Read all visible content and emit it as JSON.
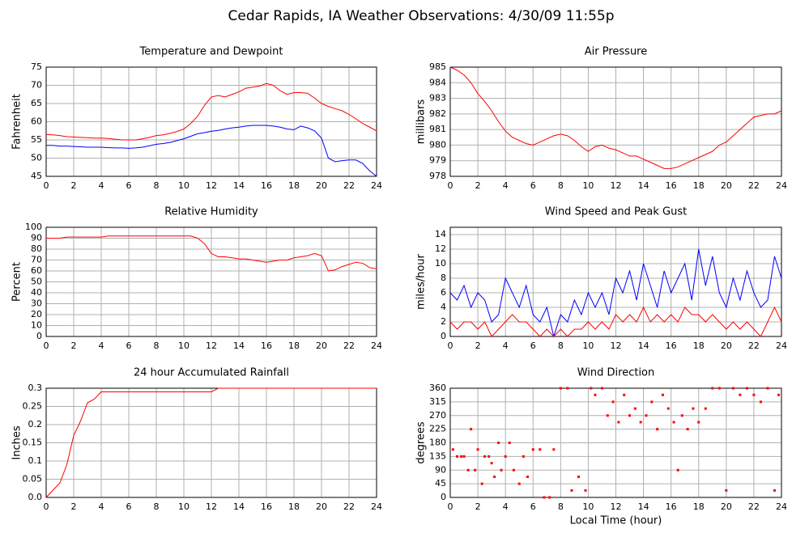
{
  "title": "Cedar Rapids, IA Weather Observations: 4/30/09 11:55p",
  "chart_data": [
    {
      "type": "line",
      "title": "Temperature and Dewpoint",
      "ylabel": "Fahrenheit",
      "x": [
        0,
        0.5,
        1,
        1.5,
        2,
        2.5,
        3,
        3.5,
        4,
        4.5,
        5,
        5.5,
        6,
        6.5,
        7,
        7.5,
        8,
        8.5,
        9,
        9.5,
        10,
        10.5,
        11,
        11.5,
        12,
        12.5,
        13,
        13.5,
        14,
        14.5,
        15,
        15.5,
        16,
        16.5,
        17,
        17.5,
        18,
        18.5,
        19,
        19.5,
        20,
        20.5,
        21,
        21.5,
        22,
        22.5,
        23,
        23.5,
        24
      ],
      "series": [
        {
          "color": "#ff0000",
          "values": [
            56.5,
            56.4,
            56.2,
            55.9,
            55.8,
            55.7,
            55.6,
            55.5,
            55.5,
            55.4,
            55.2,
            55.0,
            55.0,
            55.0,
            55.3,
            55.7,
            56.2,
            56.4,
            56.8,
            57.3,
            58.0,
            59.5,
            61.5,
            64.5,
            66.8,
            67.2,
            66.8,
            67.5,
            68.2,
            69.2,
            69.5,
            69.8,
            70.5,
            70.0,
            68.5,
            67.5,
            68.0,
            68.0,
            67.8,
            66.5,
            65.0,
            64.2,
            63.6,
            63.0,
            62.0,
            60.8,
            59.5,
            58.5,
            57.5
          ]
        },
        {
          "color": "#0000ff",
          "values": [
            53.5,
            53.5,
            53.3,
            53.3,
            53.2,
            53.1,
            53.0,
            53.0,
            53.0,
            52.9,
            52.8,
            52.8,
            52.7,
            52.8,
            53.0,
            53.4,
            53.8,
            54.0,
            54.3,
            54.8,
            55.3,
            56.0,
            56.7,
            57.0,
            57.4,
            57.6,
            58.0,
            58.3,
            58.5,
            58.8,
            59.0,
            59.0,
            59.0,
            58.8,
            58.5,
            58.0,
            57.8,
            58.8,
            58.3,
            57.5,
            55.5,
            50.0,
            49.0,
            49.3,
            49.5,
            49.5,
            48.5,
            46.5,
            45.0
          ]
        }
      ],
      "xlim": [
        0,
        24
      ],
      "xticks": [
        0,
        2,
        4,
        6,
        8,
        10,
        12,
        14,
        16,
        18,
        20,
        22,
        24
      ],
      "ylim": [
        45,
        75
      ],
      "yticks": [
        45,
        50,
        55,
        60,
        65,
        70,
        75
      ],
      "grid": true
    },
    {
      "type": "line",
      "title": "Air Pressure",
      "ylabel": "millibars",
      "x": [
        0,
        0.5,
        1,
        1.5,
        2,
        2.5,
        3,
        3.5,
        4,
        4.5,
        5,
        5.5,
        6,
        6.5,
        7,
        7.5,
        8,
        8.5,
        9,
        9.5,
        10,
        10.5,
        11,
        11.5,
        12,
        12.5,
        13,
        13.5,
        14,
        14.5,
        15,
        15.5,
        16,
        16.5,
        17,
        17.5,
        18,
        18.5,
        19,
        19.5,
        20,
        20.5,
        21,
        21.5,
        22,
        22.5,
        23,
        23.5,
        24
      ],
      "series": [
        {
          "color": "#ff0000",
          "values": [
            985,
            984.8,
            984.5,
            984.0,
            983.3,
            982.8,
            982.2,
            981.5,
            980.9,
            980.5,
            980.3,
            980.1,
            980.0,
            980.2,
            980.4,
            980.6,
            980.7,
            980.6,
            980.3,
            979.9,
            979.6,
            979.9,
            980.0,
            979.8,
            979.7,
            979.5,
            979.3,
            979.3,
            979.1,
            978.9,
            978.7,
            978.5,
            978.5,
            978.6,
            978.8,
            979.0,
            979.2,
            979.4,
            979.6,
            980.0,
            980.2,
            980.6,
            981.0,
            981.4,
            981.8,
            981.9,
            982.0,
            982.0,
            982.2
          ]
        }
      ],
      "xlim": [
        0,
        24
      ],
      "xticks": [
        0,
        2,
        4,
        6,
        8,
        10,
        12,
        14,
        16,
        18,
        20,
        22,
        24
      ],
      "ylim": [
        978,
        985
      ],
      "yticks": [
        978,
        979,
        980,
        981,
        982,
        983,
        984,
        985
      ],
      "grid": true
    },
    {
      "type": "line",
      "title": "Relative Humidity",
      "ylabel": "Percent",
      "x": [
        0,
        0.5,
        1,
        1.5,
        2,
        2.5,
        3,
        3.5,
        4,
        4.5,
        5,
        5.5,
        6,
        6.5,
        7,
        7.5,
        8,
        8.5,
        9,
        9.5,
        10,
        10.5,
        11,
        11.5,
        12,
        12.5,
        13,
        13.5,
        14,
        14.5,
        15,
        15.5,
        16,
        16.5,
        17,
        17.5,
        18,
        18.5,
        19,
        19.5,
        20,
        20.5,
        21,
        21.5,
        22,
        22.5,
        23,
        23.5,
        24
      ],
      "series": [
        {
          "color": "#ff0000",
          "values": [
            90,
            90,
            90,
            91,
            91,
            91,
            91,
            91,
            91,
            92,
            92,
            92,
            92,
            92,
            92,
            92,
            92,
            92,
            92,
            92,
            92,
            92,
            90,
            85,
            76,
            73,
            73,
            72,
            71,
            71,
            70,
            69,
            68,
            69,
            70,
            70,
            72,
            73,
            74,
            76,
            74,
            60,
            61,
            64,
            66,
            68,
            67,
            63,
            62
          ]
        }
      ],
      "xlim": [
        0,
        24
      ],
      "xticks": [
        0,
        2,
        4,
        6,
        8,
        10,
        12,
        14,
        16,
        18,
        20,
        22,
        24
      ],
      "ylim": [
        0,
        100
      ],
      "yticks": [
        0,
        10,
        20,
        30,
        40,
        50,
        60,
        70,
        80,
        90,
        100
      ],
      "grid": true
    },
    {
      "type": "line",
      "title": "Wind Speed and Peak Gust",
      "ylabel": "miles/hour",
      "x": [
        0,
        0.5,
        1,
        1.5,
        2,
        2.5,
        3,
        3.5,
        4,
        4.5,
        5,
        5.5,
        6,
        6.5,
        7,
        7.5,
        8,
        8.5,
        9,
        9.5,
        10,
        10.5,
        11,
        11.5,
        12,
        12.5,
        13,
        13.5,
        14,
        14.5,
        15,
        15.5,
        16,
        16.5,
        17,
        17.5,
        18,
        18.5,
        19,
        19.5,
        20,
        20.5,
        21,
        21.5,
        22,
        22.5,
        23,
        23.5,
        24
      ],
      "series": [
        {
          "color": "#0000ff",
          "values": [
            6,
            5,
            7,
            4,
            6,
            5,
            2,
            3,
            8,
            6,
            4,
            7,
            3,
            2,
            4,
            0,
            3,
            2,
            5,
            3,
            6,
            4,
            6,
            3,
            8,
            6,
            9,
            5,
            10,
            7,
            4,
            9,
            6,
            8,
            10,
            5,
            12,
            7,
            11,
            6,
            4,
            8,
            5,
            9,
            6,
            4,
            5,
            11,
            8
          ]
        },
        {
          "color": "#ff0000",
          "values": [
            2,
            1,
            2,
            2,
            1,
            2,
            0,
            1,
            2,
            3,
            2,
            2,
            1,
            0,
            1,
            0,
            1,
            0,
            1,
            1,
            2,
            1,
            2,
            1,
            3,
            2,
            3,
            2,
            4,
            2,
            3,
            2,
            3,
            2,
            4,
            3,
            3,
            2,
            3,
            2,
            1,
            2,
            1,
            2,
            1,
            0,
            2,
            4,
            2
          ]
        }
      ],
      "xlim": [
        0,
        24
      ],
      "xticks": [
        0,
        2,
        4,
        6,
        8,
        10,
        12,
        14,
        16,
        18,
        20,
        22,
        24
      ],
      "ylim": [
        0,
        15
      ],
      "yticks": [
        0,
        2,
        4,
        6,
        8,
        10,
        12,
        14
      ],
      "grid": true
    },
    {
      "type": "line",
      "title": "24 hour Accumulated Rainfall",
      "ylabel": "Inches",
      "x": [
        0,
        0.5,
        1,
        1.5,
        2,
        2.5,
        3,
        3.5,
        4,
        4.5,
        5,
        6,
        8,
        10,
        12,
        12.5,
        14,
        16,
        18,
        20,
        22,
        24
      ],
      "series": [
        {
          "color": "#ff0000",
          "values": [
            0,
            0.02,
            0.04,
            0.09,
            0.17,
            0.21,
            0.26,
            0.27,
            0.29,
            0.29,
            0.29,
            0.29,
            0.29,
            0.29,
            0.29,
            0.3,
            0.3,
            0.3,
            0.3,
            0.3,
            0.3,
            0.3
          ]
        }
      ],
      "xlim": [
        0,
        24
      ],
      "xticks": [
        0,
        2,
        4,
        6,
        8,
        10,
        12,
        14,
        16,
        18,
        20,
        22,
        24
      ],
      "ylim": [
        0,
        0.3
      ],
      "yticks": [
        {
          "value": 0,
          "label": "0.0"
        },
        0.05,
        0.1,
        0.15,
        0.2,
        0.25,
        0.3
      ],
      "grid": true
    },
    {
      "type": "scatter",
      "title": "Wind Direction",
      "ylabel": "degrees",
      "xlabel": "Local Time (hour)",
      "color": "#ff0000",
      "x": [
        0.2,
        0.5,
        0.8,
        1.0,
        1.3,
        1.5,
        1.8,
        2.0,
        2.3,
        2.5,
        2.8,
        3.0,
        3.2,
        3.5,
        3.7,
        4.0,
        4.3,
        4.6,
        5.0,
        5.3,
        5.6,
        6.0,
        6.5,
        6.8,
        7.2,
        7.5,
        8.0,
        8.5,
        8.8,
        9.3,
        9.8,
        10.2,
        10.5,
        11.0,
        11.4,
        11.8,
        12.2,
        12.6,
        13.0,
        13.4,
        13.8,
        14.2,
        14.6,
        15.0,
        15.4,
        15.8,
        16.2,
        16.5,
        16.8,
        17.2,
        17.6,
        18.0,
        18.5,
        19.0,
        19.5,
        20.0,
        20.5,
        21.0,
        21.5,
        22.0,
        22.5,
        23.0,
        23.5,
        23.8
      ],
      "values": [
        158,
        135,
        135,
        135,
        90,
        225,
        90,
        158,
        45,
        135,
        135,
        113,
        68,
        180,
        90,
        135,
        180,
        90,
        45,
        135,
        68,
        158,
        158,
        0,
        0,
        158,
        360,
        360,
        23,
        68,
        23,
        360,
        338,
        360,
        270,
        315,
        248,
        338,
        270,
        293,
        248,
        270,
        315,
        225,
        338,
        293,
        248,
        90,
        270,
        225,
        293,
        248,
        293,
        360,
        360,
        23,
        360,
        338,
        360,
        338,
        315,
        360,
        23,
        338
      ],
      "xlim": [
        0,
        24
      ],
      "xticks": [
        0,
        2,
        4,
        6,
        8,
        10,
        12,
        14,
        16,
        18,
        20,
        22,
        24
      ],
      "ylim": [
        0,
        360
      ],
      "yticks": [
        0,
        45,
        90,
        135,
        180,
        225,
        270,
        315,
        360
      ],
      "grid": true
    }
  ]
}
